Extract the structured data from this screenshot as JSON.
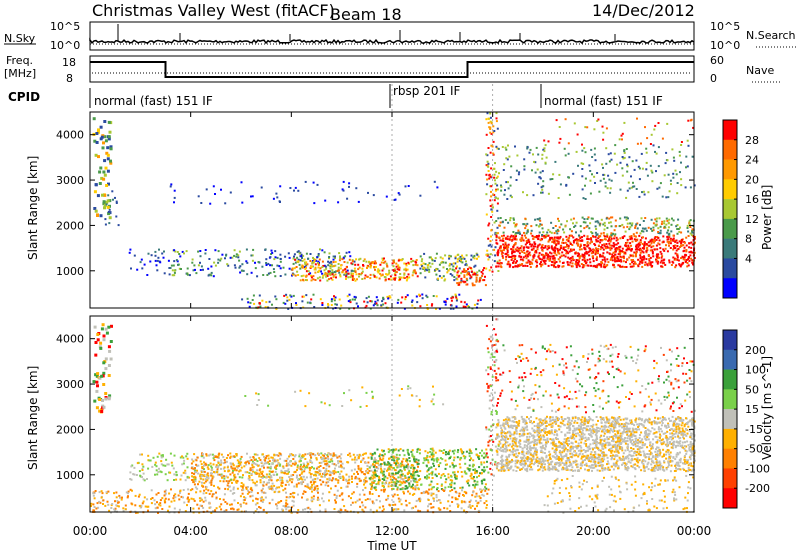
{
  "header": {
    "title": "Christmas Valley West (fitACF)",
    "beam": "Beam 18",
    "date": "14/Dec/2012"
  },
  "nsky": {
    "left_label": "N.Sky",
    "right_label": "N.Search",
    "left_ticks": [
      "10^5",
      "10^0"
    ],
    "right_ticks": [
      "10^5",
      "10^0"
    ]
  },
  "freq": {
    "left_label_line1": "Freq.",
    "left_label_line2": "[MHz]",
    "right_label": "Nave",
    "left_ticks": [
      "18",
      "8"
    ],
    "right_ticks": [
      "60",
      "0"
    ]
  },
  "cpid": {
    "label": "CPID",
    "segments": [
      "normal (fast) 151 IF",
      "rbsp 201 IF",
      "normal (fast) 151 IF"
    ]
  },
  "axes": {
    "ylabel": "Slant Range [km]",
    "xlabel": "Time UT",
    "y_ticks": [
      "1000",
      "2000",
      "3000",
      "4000"
    ],
    "x_ticks": [
      "00:00",
      "04:00",
      "08:00",
      "12:00",
      "16:00",
      "20:00",
      "00:00"
    ]
  },
  "power_bar": {
    "label": "Power [dB]",
    "ticks": [
      "28",
      "24",
      "20",
      "16",
      "12",
      "8",
      "4"
    ],
    "colors": [
      "#ff0000",
      "#ff6a00",
      "#ff9900",
      "#ffcc00",
      "#a8c832",
      "#4a9a4a",
      "#3a7a7a",
      "#2a4aa0",
      "#0000ff"
    ]
  },
  "velocity_bar": {
    "label": "Velocity [m s^-1]",
    "ticks": [
      "200",
      "100",
      "50",
      "15",
      "-15",
      "-50",
      "-100",
      "-200"
    ],
    "colors": [
      "#2a3aa0",
      "#3a6ab0",
      "#3aa03a",
      "#7ad04a",
      "#c0c0b8",
      "#ffb000",
      "#ff8000",
      "#ff4000",
      "#ff0000"
    ]
  },
  "chart_data": {
    "type": "heatmap",
    "title": "Christmas Valley West (fitACF)",
    "xlabel": "Time UT",
    "ylabel": "Slant Range [km]",
    "x_range": [
      "00:00",
      "24:00"
    ],
    "ylim": [
      180,
      4500
    ],
    "panels": [
      "Power [dB]",
      "Velocity [m s^-1]"
    ],
    "frequency_mhz": [
      {
        "start": "00:00",
        "end": "03:00",
        "value": 18
      },
      {
        "start": "03:00",
        "end": "15:00",
        "value": 10
      },
      {
        "start": "15:00",
        "end": "24:00",
        "value": 18
      }
    ],
    "cpid_segments": [
      {
        "start": "00:00",
        "end": "12:00",
        "name": "normal (fast) 151 IF"
      },
      {
        "start": "12:00",
        "end": "18:00",
        "name": "rbsp 201 IF"
      },
      {
        "start": "18:00",
        "end": "24:00",
        "name": "normal (fast) 151 IF"
      }
    ]
  }
}
